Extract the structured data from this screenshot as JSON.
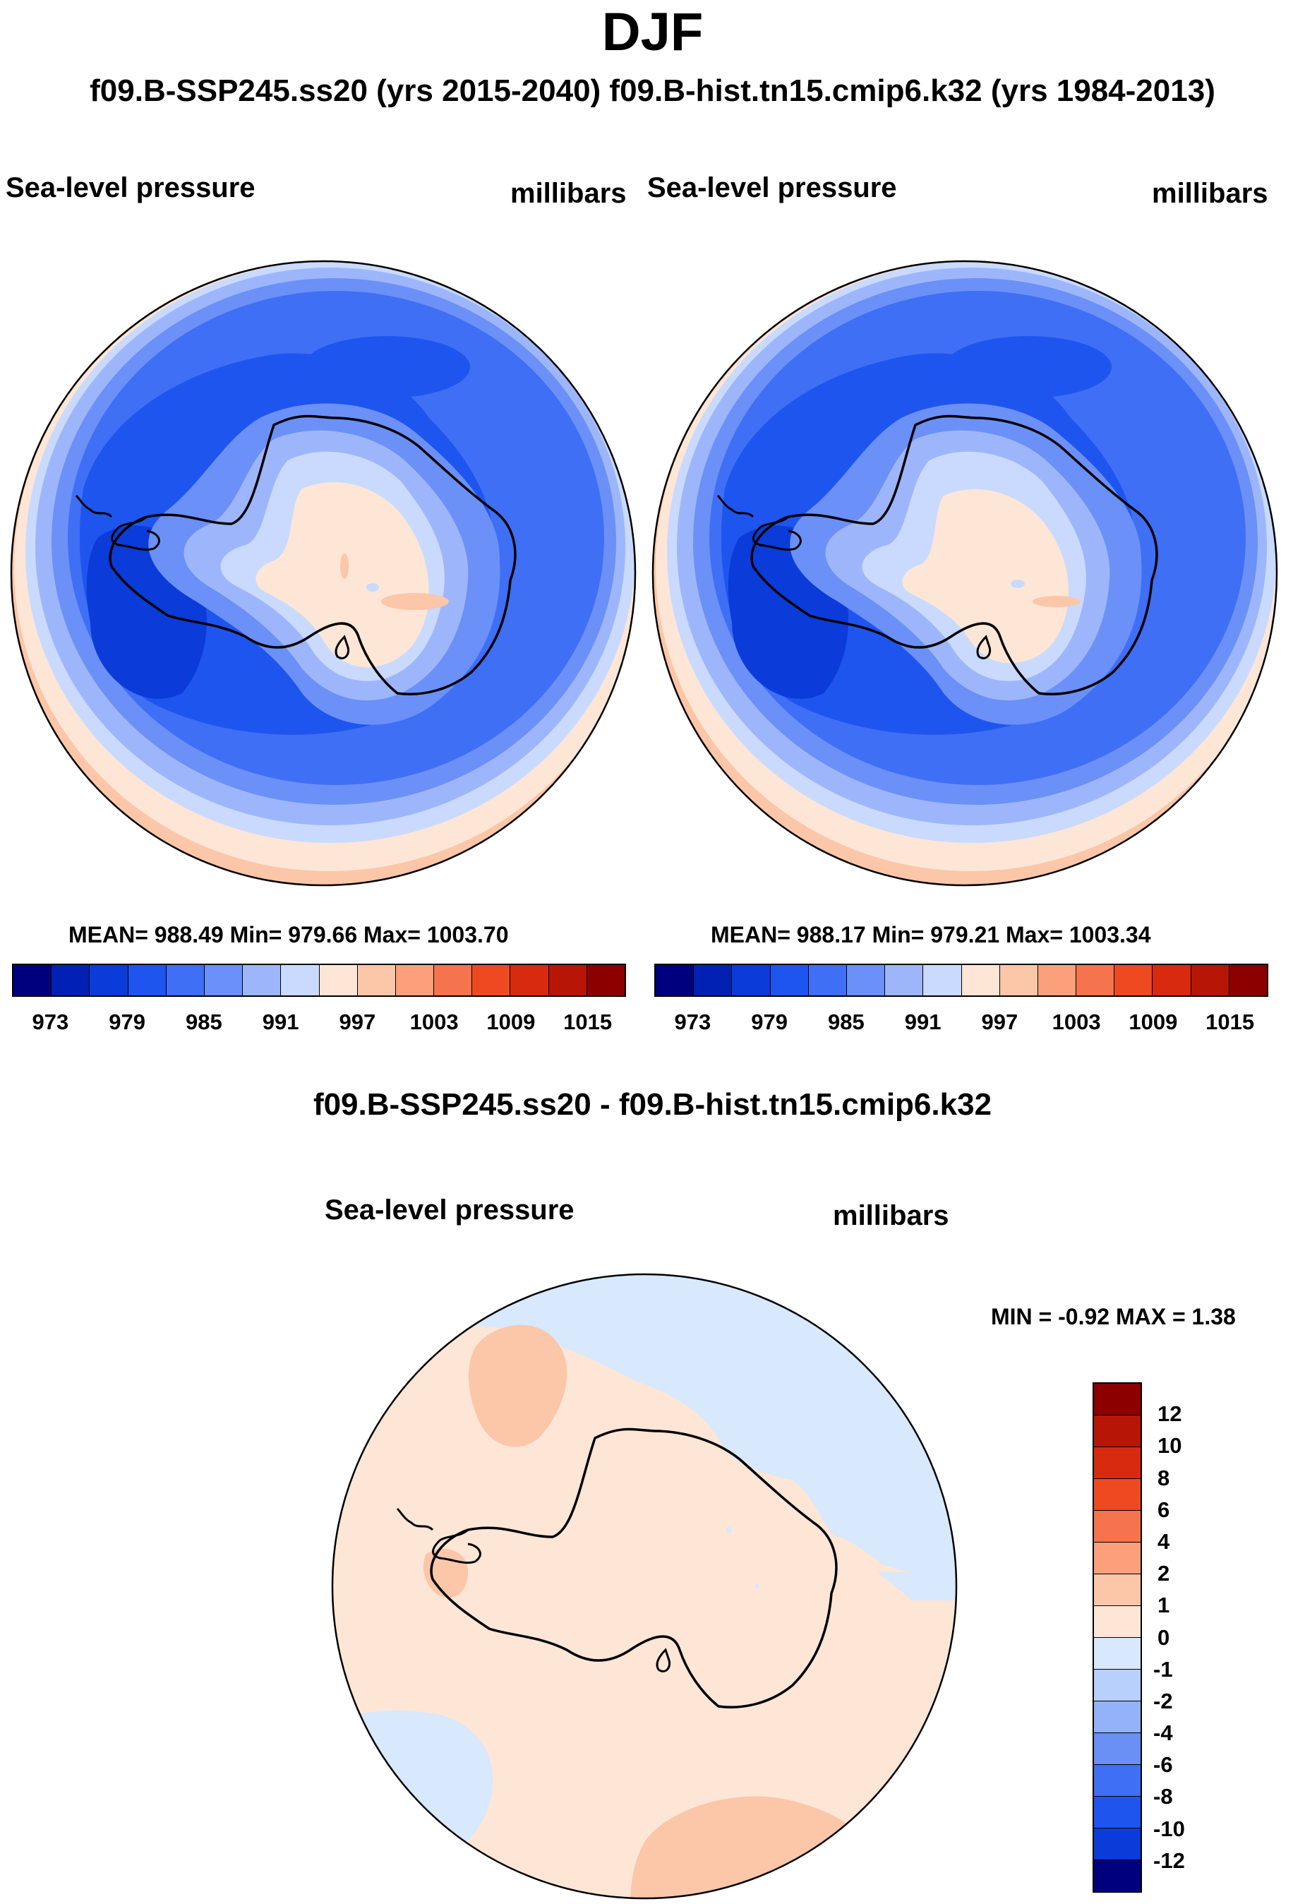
{
  "title": "DJF",
  "subtitle": "f09.B-SSP245.ss20 (yrs 2015-2040)  f09.B-hist.tn15.cmip6.k32 (yrs 1984-2013)",
  "palette": {
    "blues": [
      "#00007f",
      "#0021b3",
      "#0b3bd9",
      "#1f55ef",
      "#3f6ff5",
      "#6b90f7",
      "#9db6fb",
      "#c9dafe",
      "#e4f0ff"
    ],
    "reds": [
      "#fde6d6",
      "#fcc6a9",
      "#fba07b",
      "#f6744d",
      "#ee4a22",
      "#d82a0f",
      "#b71506",
      "#8c0000"
    ],
    "coast": "#000000"
  },
  "panels": [
    {
      "variable": "Sea-level pressure",
      "units": "millibars",
      "stats": "MEAN= 988.49  Min= 979.66  Max= 1003.70"
    },
    {
      "variable": "Sea-level pressure",
      "units": "millibars",
      "stats": "MEAN= 988.17  Min= 979.21  Max= 1003.34"
    }
  ],
  "colorbar": {
    "colors": [
      "#00007f",
      "#0021b3",
      "#0b3bd9",
      "#1f55ef",
      "#3f6ff5",
      "#6b90f7",
      "#9db6fb",
      "#c9dafe",
      "#fde6d6",
      "#fcc6a9",
      "#fba07b",
      "#f6744d",
      "#ee4a22",
      "#d82a0f",
      "#b71506",
      "#8c0000"
    ],
    "ticks": [
      "973",
      "979",
      "985",
      "991",
      "997",
      "1003",
      "1009",
      "1015"
    ]
  },
  "diff": {
    "title": "f09.B-SSP245.ss20 - f09.B-hist.tn15.cmip6.k32",
    "variable": "Sea-level pressure",
    "units": "millibars",
    "minmax": "MIN =  -0.92 MAX =   1.38",
    "colorbar": {
      "colors": [
        "#8c0000",
        "#b71506",
        "#d82a0f",
        "#ee4a22",
        "#f6744d",
        "#fba07b",
        "#fcc6a9",
        "#fde6d6",
        "#d8e8fd",
        "#b8d0fc",
        "#93b2f8",
        "#6a8ff5",
        "#3f6ff5",
        "#1f55ef",
        "#0b3bd9",
        "#00007f"
      ],
      "ticks": [
        "12",
        "10",
        "8",
        "6",
        "4",
        "2",
        "1",
        "0",
        "-1",
        "-2",
        "-4",
        "-6",
        "-8",
        "-10",
        "-12"
      ]
    }
  },
  "chart_data": [
    {
      "type": "heatmap",
      "title": "Sea-level pressure (f09.B-SSP245.ss20, yrs 2015-2040, DJF)",
      "units": "millibars",
      "levels": [
        973,
        976,
        979,
        982,
        985,
        988,
        991,
        994,
        997,
        1000,
        1003,
        1006,
        1009,
        1012,
        1015
      ],
      "mean": 988.49,
      "min": 979.66,
      "max": 1003.7
    },
    {
      "type": "heatmap",
      "title": "Sea-level pressure (f09.B-hist.tn15.cmip6.k32, yrs 1984-2013, DJF)",
      "units": "millibars",
      "levels": [
        973,
        976,
        979,
        982,
        985,
        988,
        991,
        994,
        997,
        1000,
        1003,
        1006,
        1009,
        1012,
        1015
      ],
      "mean": 988.17,
      "min": 979.21,
      "max": 1003.34
    },
    {
      "type": "heatmap",
      "title": "f09.B-SSP245.ss20 - f09.B-hist.tn15.cmip6.k32 Sea-level pressure",
      "units": "millibars",
      "levels": [
        -12,
        -10,
        -8,
        -6,
        -4,
        -2,
        -1,
        0,
        1,
        2,
        4,
        6,
        8,
        10,
        12
      ],
      "min": -0.92,
      "max": 1.38
    }
  ]
}
